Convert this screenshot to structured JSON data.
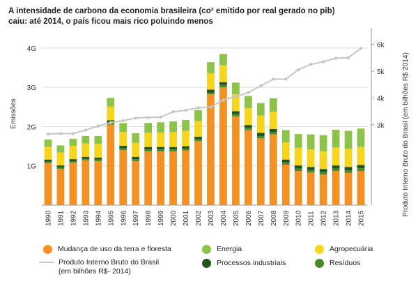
{
  "title": "A intensidade de carbono da economia brasileira (co² emitido por real gerado no pib) caiu: até 2014, o país ficou mais rico poluindo menos",
  "colors": {
    "land_use": "#f39223",
    "agriculture": "#f7d51c",
    "energy": "#8dc34a",
    "industrial": "#21541a",
    "waste": "#4b8b2b",
    "gdp": "#c6c6c6",
    "grid": "#dcdcdc"
  },
  "chart_data": {
    "type": "bar",
    "stacked": true,
    "categories": [
      "1990",
      "1991",
      "1992",
      "1993",
      "1994",
      "1995",
      "1996",
      "1997",
      "1998",
      "1999",
      "2000",
      "2001",
      "2002",
      "2003",
      "2004",
      "2005",
      "2006",
      "2007",
      "2008",
      "2009",
      "2010",
      "2011",
      "2012",
      "2013",
      "2014",
      "2015"
    ],
    "ylabel": "Emissões",
    "y2label": "Produto Interno Bruto do Brasil (em bilhões R$ 2014)",
    "ylim": [
      0,
      4.3
    ],
    "yticks": [
      "1G",
      "2G",
      "3G",
      "4G"
    ],
    "y2lim": [
      0,
      6.3
    ],
    "y2ticks": [
      "3k",
      "4k",
      "5k",
      "6k"
    ],
    "grid": true,
    "series": [
      {
        "name": "Mudança de uso da terra e floresta",
        "key": "land_use",
        "values": [
          1.07,
          0.92,
          1.08,
          1.14,
          1.12,
          2.05,
          1.4,
          1.12,
          1.37,
          1.37,
          1.37,
          1.39,
          1.63,
          2.82,
          3.0,
          2.26,
          1.91,
          1.7,
          1.8,
          1.03,
          0.87,
          0.83,
          0.78,
          0.87,
          0.82,
          0.87
        ]
      },
      {
        "name": "Resíduos",
        "key": "waste",
        "values": [
          0.04,
          0.04,
          0.04,
          0.04,
          0.04,
          0.05,
          0.05,
          0.05,
          0.05,
          0.05,
          0.05,
          0.05,
          0.05,
          0.05,
          0.06,
          0.06,
          0.06,
          0.06,
          0.06,
          0.06,
          0.06,
          0.06,
          0.06,
          0.06,
          0.07,
          0.07
        ]
      },
      {
        "name": "Processos industriais",
        "key": "industrial",
        "values": [
          0.05,
          0.05,
          0.05,
          0.05,
          0.05,
          0.06,
          0.06,
          0.06,
          0.06,
          0.06,
          0.06,
          0.06,
          0.06,
          0.07,
          0.07,
          0.07,
          0.07,
          0.08,
          0.08,
          0.07,
          0.08,
          0.08,
          0.08,
          0.08,
          0.08,
          0.08
        ]
      },
      {
        "name": "Agropecuária",
        "key": "agriculture",
        "values": [
          0.33,
          0.33,
          0.34,
          0.34,
          0.35,
          0.35,
          0.35,
          0.36,
          0.36,
          0.37,
          0.38,
          0.39,
          0.4,
          0.42,
          0.43,
          0.43,
          0.43,
          0.44,
          0.44,
          0.44,
          0.45,
          0.45,
          0.45,
          0.46,
          0.47,
          0.46
        ]
      },
      {
        "name": "Energia",
        "key": "energy",
        "values": [
          0.18,
          0.18,
          0.18,
          0.19,
          0.2,
          0.22,
          0.23,
          0.24,
          0.25,
          0.26,
          0.27,
          0.28,
          0.28,
          0.28,
          0.29,
          0.3,
          0.31,
          0.32,
          0.34,
          0.31,
          0.35,
          0.38,
          0.41,
          0.45,
          0.45,
          0.47
        ]
      }
    ],
    "line": {
      "name": "Produto Interno Bruto do Brasil (em bilhões R$- 2014)",
      "values": [
        2.65,
        2.67,
        2.67,
        2.8,
        2.95,
        3.08,
        3.15,
        3.25,
        3.27,
        3.28,
        3.48,
        3.54,
        3.63,
        3.66,
        3.92,
        4.05,
        4.2,
        4.45,
        4.7,
        4.7,
        5.05,
        5.25,
        5.35,
        5.48,
        5.5,
        5.85
      ]
    }
  },
  "legend": [
    {
      "key": "land_use",
      "label": "Mudança de uso da terra e floresta",
      "kind": "dot"
    },
    {
      "key": "energy",
      "label": "Energia",
      "kind": "dot"
    },
    {
      "key": "agriculture",
      "label": "Agropecuária",
      "kind": "dot"
    },
    {
      "key": "gdp",
      "label": "Produto Interno Bruto do Brasil",
      "label2": "(em bilhões R$- 2014)",
      "kind": "line"
    },
    {
      "key": "industrial",
      "label": "Processos industriais",
      "kind": "dot"
    },
    {
      "key": "waste",
      "label": "Resíduos",
      "kind": "dot"
    }
  ]
}
